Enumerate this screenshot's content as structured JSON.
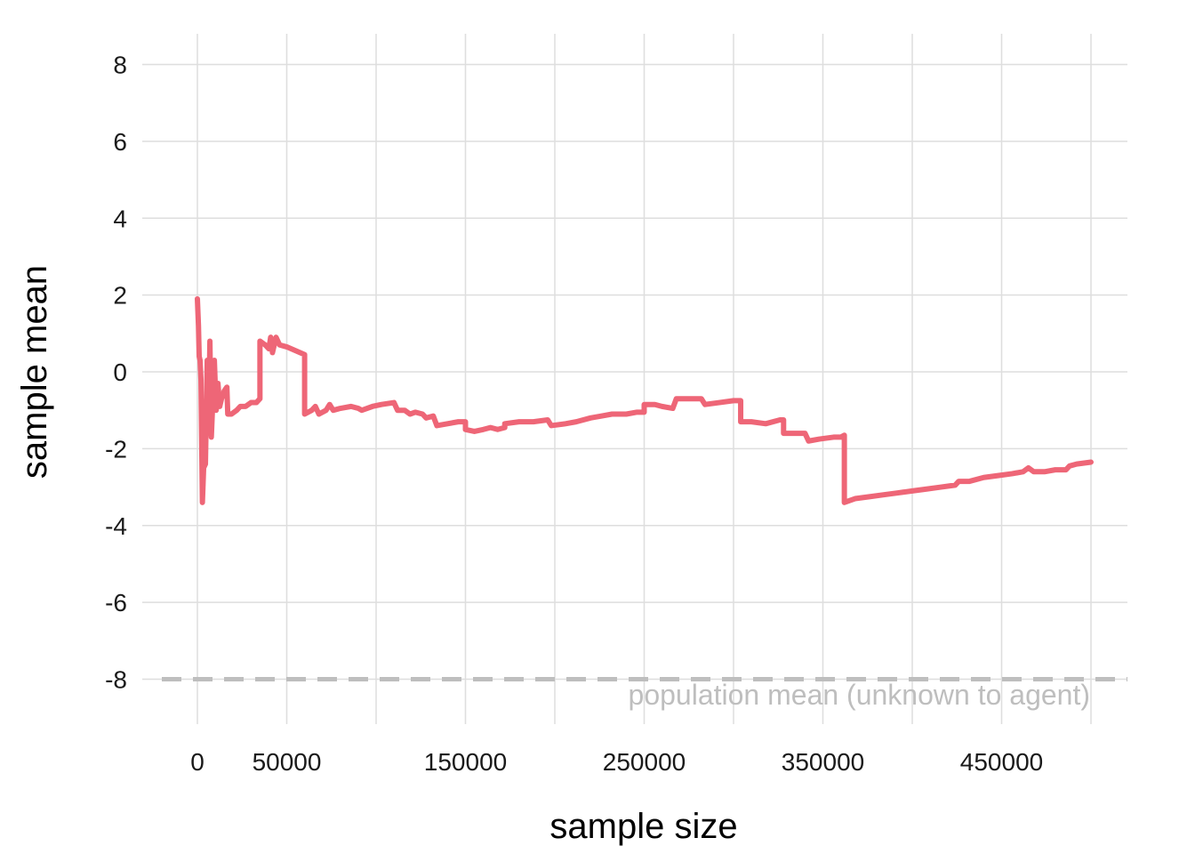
{
  "chart_data": {
    "type": "line",
    "title": "",
    "xlabel": "sample size",
    "ylabel": "sample mean",
    "xlim": [
      -30000,
      520000
    ],
    "ylim": [
      -9.0,
      8.8
    ],
    "grid": true,
    "x_ticks": [
      0,
      50000,
      150000,
      250000,
      350000,
      450000
    ],
    "x_tick_labels": [
      "0",
      "50000",
      "150000",
      "250000",
      "350000",
      "450000"
    ],
    "x_minor_grid": [
      100000,
      200000,
      300000,
      400000,
      500000
    ],
    "y_ticks": [
      -8,
      -6,
      -4,
      -2,
      0,
      2,
      4,
      6,
      8
    ],
    "y_tick_labels": [
      "-8",
      "-6",
      "-4",
      "-2",
      "0",
      "2",
      "4",
      "6",
      "8"
    ],
    "series": [
      {
        "color": "#EE6677",
        "points": [
          [
            0,
            1.9
          ],
          [
            600,
            1.2
          ],
          [
            1000,
            0.4
          ],
          [
            1500,
            0.3
          ],
          [
            2000,
            -0.2
          ],
          [
            2800,
            -3.4
          ],
          [
            3500,
            -2.5
          ],
          [
            4500,
            -2.4
          ],
          [
            5500,
            0.3
          ],
          [
            6200,
            -1.6
          ],
          [
            7000,
            0.8
          ],
          [
            7800,
            -1.7
          ],
          [
            8500,
            -0.9
          ],
          [
            9500,
            0.3
          ],
          [
            10500,
            -1.0
          ],
          [
            11500,
            -0.3
          ],
          [
            12500,
            -0.9
          ],
          [
            13500,
            -0.7
          ],
          [
            15000,
            -0.5
          ],
          [
            16500,
            -0.4
          ],
          [
            17000,
            -1.1
          ],
          [
            19000,
            -1.1
          ],
          [
            22000,
            -1.0
          ],
          [
            24000,
            -0.9
          ],
          [
            27000,
            -0.9
          ],
          [
            30000,
            -0.8
          ],
          [
            33000,
            -0.8
          ],
          [
            35000,
            -0.7
          ],
          [
            35000,
            0.8
          ],
          [
            38000,
            0.7
          ],
          [
            40000,
            0.6
          ],
          [
            41000,
            0.9
          ],
          [
            42000,
            0.5
          ],
          [
            44000,
            0.9
          ],
          [
            46000,
            0.7
          ],
          [
            50000,
            0.65
          ],
          [
            55000,
            0.55
          ],
          [
            60000,
            0.45
          ],
          [
            60000,
            -1.1
          ],
          [
            64000,
            -1.0
          ],
          [
            66000,
            -0.9
          ],
          [
            68000,
            -1.1
          ],
          [
            72000,
            -1.0
          ],
          [
            74000,
            -0.85
          ],
          [
            76000,
            -1.0
          ],
          [
            80000,
            -0.95
          ],
          [
            86000,
            -0.9
          ],
          [
            90000,
            -0.95
          ],
          [
            92000,
            -1.0
          ],
          [
            98000,
            -0.9
          ],
          [
            103000,
            -0.85
          ],
          [
            110000,
            -0.8
          ],
          [
            112000,
            -1.0
          ],
          [
            116000,
            -1.0
          ],
          [
            119000,
            -1.1
          ],
          [
            122000,
            -1.05
          ],
          [
            126000,
            -1.1
          ],
          [
            128000,
            -1.2
          ],
          [
            132000,
            -1.15
          ],
          [
            134000,
            -1.4
          ],
          [
            140000,
            -1.35
          ],
          [
            146000,
            -1.3
          ],
          [
            150000,
            -1.3
          ],
          [
            150000,
            -1.5
          ],
          [
            155000,
            -1.55
          ],
          [
            160000,
            -1.5
          ],
          [
            164000,
            -1.45
          ],
          [
            168000,
            -1.5
          ],
          [
            172000,
            -1.45
          ],
          [
            172000,
            -1.35
          ],
          [
            180000,
            -1.3
          ],
          [
            188000,
            -1.3
          ],
          [
            196000,
            -1.25
          ],
          [
            198000,
            -1.4
          ],
          [
            206000,
            -1.35
          ],
          [
            212000,
            -1.3
          ],
          [
            220000,
            -1.2
          ],
          [
            226000,
            -1.15
          ],
          [
            232000,
            -1.1
          ],
          [
            240000,
            -1.1
          ],
          [
            246000,
            -1.05
          ],
          [
            250000,
            -1.05
          ],
          [
            250000,
            -0.85
          ],
          [
            256000,
            -0.85
          ],
          [
            260000,
            -0.9
          ],
          [
            266000,
            -0.95
          ],
          [
            268000,
            -0.7
          ],
          [
            276000,
            -0.7
          ],
          [
            282000,
            -0.7
          ],
          [
            284000,
            -0.85
          ],
          [
            292000,
            -0.8
          ],
          [
            300000,
            -0.75
          ],
          [
            304000,
            -0.75
          ],
          [
            304000,
            -1.3
          ],
          [
            310000,
            -1.3
          ],
          [
            318000,
            -1.35
          ],
          [
            326000,
            -1.25
          ],
          [
            328000,
            -1.25
          ],
          [
            328000,
            -1.6
          ],
          [
            336000,
            -1.6
          ],
          [
            340000,
            -1.6
          ],
          [
            342000,
            -1.8
          ],
          [
            348000,
            -1.75
          ],
          [
            356000,
            -1.7
          ],
          [
            360000,
            -1.7
          ],
          [
            362000,
            -1.65
          ],
          [
            362000,
            -3.4
          ],
          [
            368000,
            -3.3
          ],
          [
            376000,
            -3.25
          ],
          [
            384000,
            -3.2
          ],
          [
            392000,
            -3.15
          ],
          [
            400000,
            -3.1
          ],
          [
            408000,
            -3.05
          ],
          [
            416000,
            -3.0
          ],
          [
            424000,
            -2.95
          ],
          [
            426000,
            -2.85
          ],
          [
            432000,
            -2.85
          ],
          [
            440000,
            -2.75
          ],
          [
            448000,
            -2.7
          ],
          [
            456000,
            -2.65
          ],
          [
            462000,
            -2.6
          ],
          [
            465000,
            -2.5
          ],
          [
            468000,
            -2.6
          ],
          [
            474000,
            -2.6
          ],
          [
            480000,
            -2.55
          ],
          [
            486000,
            -2.55
          ],
          [
            488000,
            -2.45
          ],
          [
            492000,
            -2.4
          ],
          [
            500000,
            -2.35
          ]
        ]
      }
    ],
    "reference_line": {
      "y": -8,
      "style": "dashed",
      "color": "#bebebe",
      "label": "population mean (unknown to agent)"
    }
  }
}
